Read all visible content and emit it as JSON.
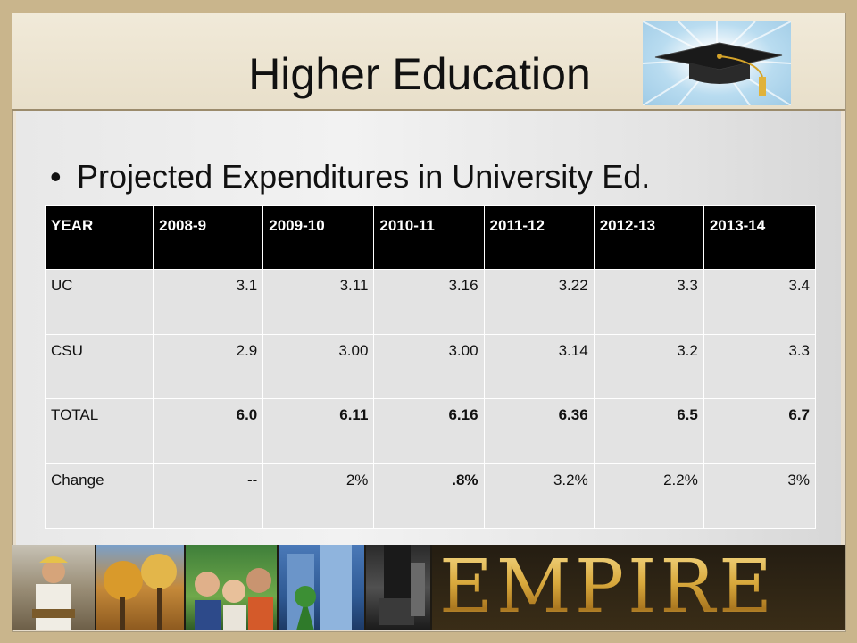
{
  "slide": {
    "title": "Higher Education",
    "bullet": "Projected Expenditures in University Ed."
  },
  "table": {
    "headers": [
      "YEAR",
      "2008-9",
      "2009-10",
      "2010-11",
      "2011-12",
      "2012-13",
      "2013-14"
    ],
    "rows": [
      {
        "label": "UC",
        "values": [
          "3.1",
          "3.11",
          "3.16",
          "3.22",
          "3.3",
          "3.4"
        ]
      },
      {
        "label": "CSU",
        "values": [
          "2.9",
          "3.00",
          "3.00",
          "3.14",
          "3.2",
          "3.3"
        ]
      },
      {
        "label": "TOTAL",
        "values": [
          "6.0",
          "6.11",
          "6.16",
          "6.36",
          "6.5",
          "6.7"
        ]
      },
      {
        "label": "Change",
        "values": [
          "--",
          "2%",
          ".8%",
          "3.2%",
          "2.2%",
          "3%"
        ]
      }
    ]
  },
  "branding": {
    "logo_text": "EMPIRE"
  },
  "colors": {
    "header_bg": "#000000",
    "cell_bg": "#e3e3e3",
    "logo_gold": "#d8a83c"
  },
  "icons": {
    "graduation": "graduation-cap-icon"
  }
}
